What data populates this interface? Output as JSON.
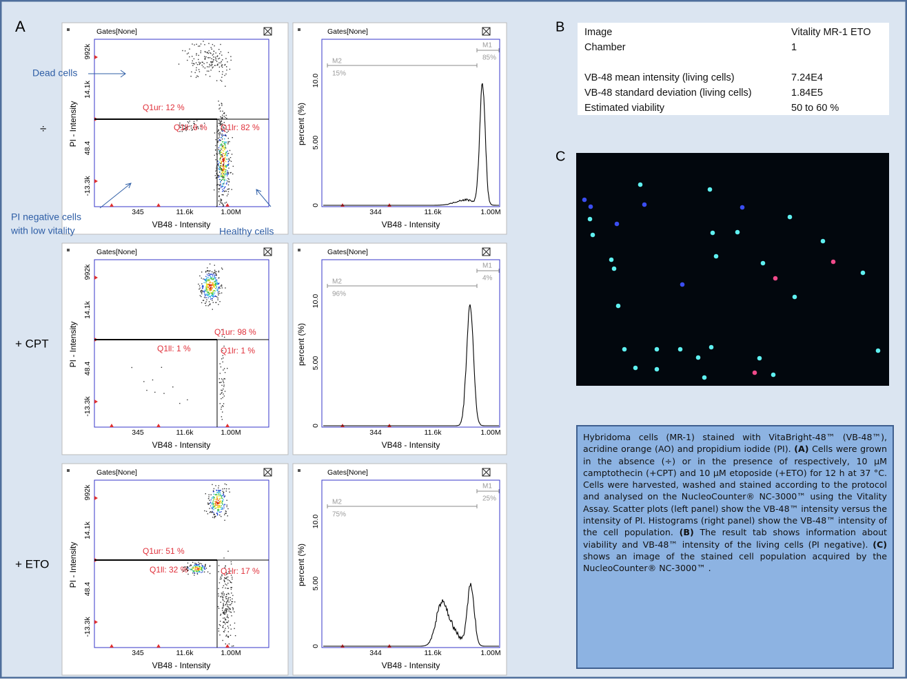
{
  "panel_a": {
    "label": "A",
    "gates": "Gates[None]",
    "scatter_y_label": "PI - Intensity",
    "scatter_x_label": "VB48 - Intensity",
    "scatter_yticks": [
      "992k",
      "14.1k",
      "48.4",
      "-13.3k"
    ],
    "scatter_xticks": [
      "345",
      "11.6k",
      "1.00M"
    ],
    "hist_y_label": "percent (%)",
    "hist_x_label": "VB48 - Intensity",
    "hist_yticks": [
      "10.0",
      "5.00",
      "0"
    ],
    "hist_xticks": [
      "344",
      "11.6k",
      "1.00M"
    ],
    "annotations": {
      "dead_cells": "Dead cells",
      "pi_negative": [
        "PI negative cells",
        "with low vitality"
      ],
      "healthy_cells": "Healthy cells"
    },
    "rows": [
      {
        "condition": "÷",
        "quadrants": {
          "ur": "Q1ur: 12 %",
          "ll": "Q1ll: 6 %",
          "lr": "Q1lr: 82 %"
        },
        "markers": {
          "m1": "M1",
          "m1_percent": "85%",
          "m2": "M2",
          "m2_percent": "15%"
        }
      },
      {
        "condition": "+ CPT",
        "quadrants": {
          "ur": "Q1ur: 98 %",
          "ll": "Q1ll: 1 %",
          "lr": "Q1lr: 1 %"
        },
        "markers": {
          "m1": "M1",
          "m1_percent": "4%",
          "m2": "M2",
          "m2_percent": "96%"
        }
      },
      {
        "condition": "+ ETO",
        "quadrants": {
          "ur": "Q1ur: 51 %",
          "ll": "Q1ll: 32 %",
          "lr": "Q1lr: 17 %"
        },
        "markers": {
          "m1": "M1",
          "m1_percent": "25%",
          "m2": "M2",
          "m2_percent": "75%"
        }
      }
    ]
  },
  "panel_b": {
    "label": "B",
    "rows": [
      [
        "Image",
        "Vitality MR-1 ETO"
      ],
      [
        "Chamber",
        "1"
      ],
      [
        "VB-48 mean intensity (living cells)",
        "7.24E4"
      ],
      [
        "VB-48 standard deviation (living cells)",
        "1.84E5"
      ],
      [
        "Estimated viability",
        "50 to 60 %"
      ]
    ]
  },
  "panel_c": {
    "label": "C"
  },
  "caption": [
    {
      "text": "Hybridoma cells (MR-1) stained with VitaBright-48™ (VB-48™), acridine orange (AO) and propidium iodide (PI). ",
      "bold": false
    },
    {
      "text": "(A)",
      "bold": true
    },
    {
      "text": " Cells were grown in the absence (÷) or in the presence of respectively, 10 µM camptothecin (+CPT) and 10 µM etoposide (+ETO) for 12 h at 37 °C. Cells were harvested, washed and stained according to the protocol and analysed on the NucleoCounter® NC-3000™ using the Vitality Assay. Scatter plots (left panel) show the VB-48™ intensity versus the intensity of PI. Histograms (right panel) show the VB-48™ intensity of the cell population. ",
      "bold": false
    },
    {
      "text": "(B)",
      "bold": true
    },
    {
      "text": " The result tab shows information about viability and VB-48™ intensity of the living cells (PI negative). ",
      "bold": false
    },
    {
      "text": "(C)",
      "bold": true
    },
    {
      "text": " shows an image of the stained cell population acquired by the NucleoCounter® NC-3000™ .",
      "bold": false
    }
  ]
}
